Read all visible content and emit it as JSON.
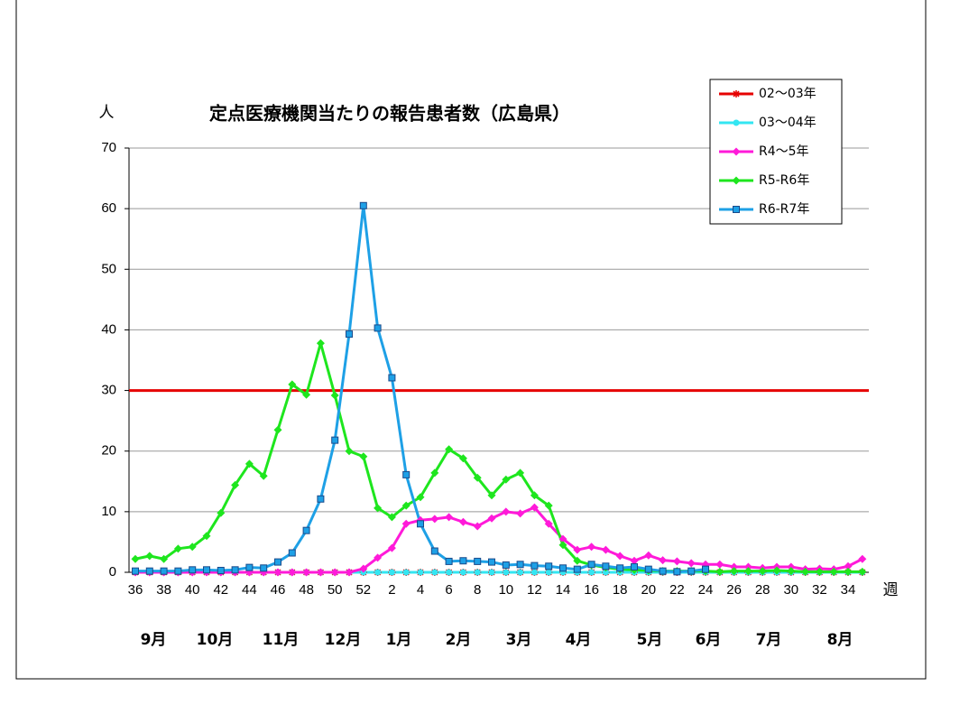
{
  "chart_data": {
    "type": "line",
    "title": "定点医療機関当たりの報告患者数（広島県）",
    "y_label": "人",
    "x_label": "週",
    "categories": [
      36,
      null,
      38,
      null,
      40,
      null,
      42,
      null,
      44,
      null,
      46,
      null,
      48,
      null,
      50,
      null,
      52,
      null,
      2,
      null,
      4,
      null,
      6,
      null,
      8,
      null,
      10,
      null,
      12,
      null,
      14,
      null,
      16,
      null,
      18,
      null,
      20,
      null,
      22,
      null,
      24,
      null,
      26,
      null,
      28,
      null,
      30,
      null,
      32,
      null,
      34,
      null
    ],
    "months": [
      "9月",
      "10月",
      "11月",
      "12月",
      "1月",
      "2月",
      "3月",
      "4月",
      "5月",
      "6月",
      "7月",
      "8月"
    ],
    "ylim": [
      0,
      70
    ],
    "yticks": [
      0,
      10,
      20,
      30,
      40,
      50,
      60,
      70
    ],
    "grid": true,
    "reference_line": {
      "value": 30,
      "color": "#e60000"
    },
    "legend_position": "top-right",
    "series": [
      {
        "name": "02～03年",
        "color": "#e60000",
        "marker": "asterisk",
        "values": [
          0,
          0,
          0,
          0,
          0,
          0,
          0,
          0,
          0,
          0,
          0,
          0,
          0,
          0,
          0,
          0,
          0,
          0,
          0,
          0,
          0,
          0,
          0,
          0,
          0,
          0,
          0,
          0,
          0,
          0,
          0,
          0,
          0,
          0,
          0,
          0,
          0,
          0,
          0,
          0,
          0,
          0,
          0,
          0,
          0,
          0,
          0,
          0,
          0,
          0,
          0,
          0
        ]
      },
      {
        "name": "03～04年",
        "color": "#33e6f2",
        "marker": "circle",
        "values": [
          0,
          0,
          0,
          0,
          0,
          0,
          0,
          0,
          0,
          0,
          0,
          0,
          0,
          0,
          0,
          0,
          0,
          0,
          0,
          0,
          0,
          0,
          0,
          0,
          0,
          0,
          0,
          0,
          0,
          0,
          0,
          0,
          0,
          0,
          0,
          0,
          0,
          0,
          0,
          0,
          0,
          0,
          0,
          0,
          0,
          0,
          0,
          0,
          0,
          0,
          0,
          0
        ]
      },
      {
        "name": "R4～5年",
        "color": "#ff1ad9",
        "marker": "diamond",
        "values": [
          0,
          0,
          0,
          0,
          0,
          0,
          0,
          0,
          0,
          0,
          0,
          0,
          0,
          0,
          0,
          0,
          0.6,
          2.4,
          4.0,
          8.0,
          8.6,
          8.8,
          9.1,
          8.3,
          7.6,
          8.9,
          10.0,
          9.7,
          10.7,
          8.0,
          5.5,
          3.7,
          4.2,
          3.7,
          2.7,
          1.9,
          2.8,
          2.0,
          1.8,
          1.5,
          1.3,
          1.3,
          0.9,
          0.9,
          0.7,
          0.9,
          0.9,
          0.5,
          0.6,
          0.5,
          1.0,
          2.2
        ]
      },
      {
        "name": "R5-R6年",
        "color": "#1ee61e",
        "marker": "diamond",
        "values": [
          2.2,
          2.7,
          2.2,
          3.9,
          4.2,
          6.0,
          9.8,
          14.4,
          17.9,
          15.9,
          23.5,
          31.0,
          29.3,
          37.8,
          29.2,
          20.0,
          19.1,
          10.6,
          9.1,
          11.0,
          12.4,
          16.4,
          20.3,
          18.8,
          15.6,
          12.7,
          15.3,
          16.4,
          12.7,
          11.0,
          4.5,
          1.9,
          1.2,
          0.8,
          0.5,
          0.4,
          0.3,
          0.2,
          0.2,
          0.2,
          0.2,
          0.1,
          0.2,
          0.2,
          0.2,
          0.3,
          0.2,
          0.1,
          0.1,
          0.1,
          0.1,
          0.1
        ]
      },
      {
        "name": "R6-R7年",
        "color": "#1ea0e6",
        "marker": "square",
        "values": [
          0.2,
          0.2,
          0.2,
          0.2,
          0.4,
          0.4,
          0.3,
          0.4,
          0.8,
          0.7,
          1.7,
          3.2,
          6.9,
          12.1,
          21.8,
          39.3,
          60.5,
          40.3,
          32.1,
          16.1,
          8.0,
          3.5,
          1.8,
          1.9,
          1.8,
          1.7,
          1.2,
          1.3,
          1.1,
          1.0,
          0.7,
          0.5,
          1.3,
          1.0,
          0.7,
          0.9,
          0.5,
          0.2,
          0.1,
          0.2,
          0.5,
          null,
          null,
          null,
          null,
          null,
          null,
          null,
          null,
          null,
          null,
          null
        ]
      }
    ]
  }
}
